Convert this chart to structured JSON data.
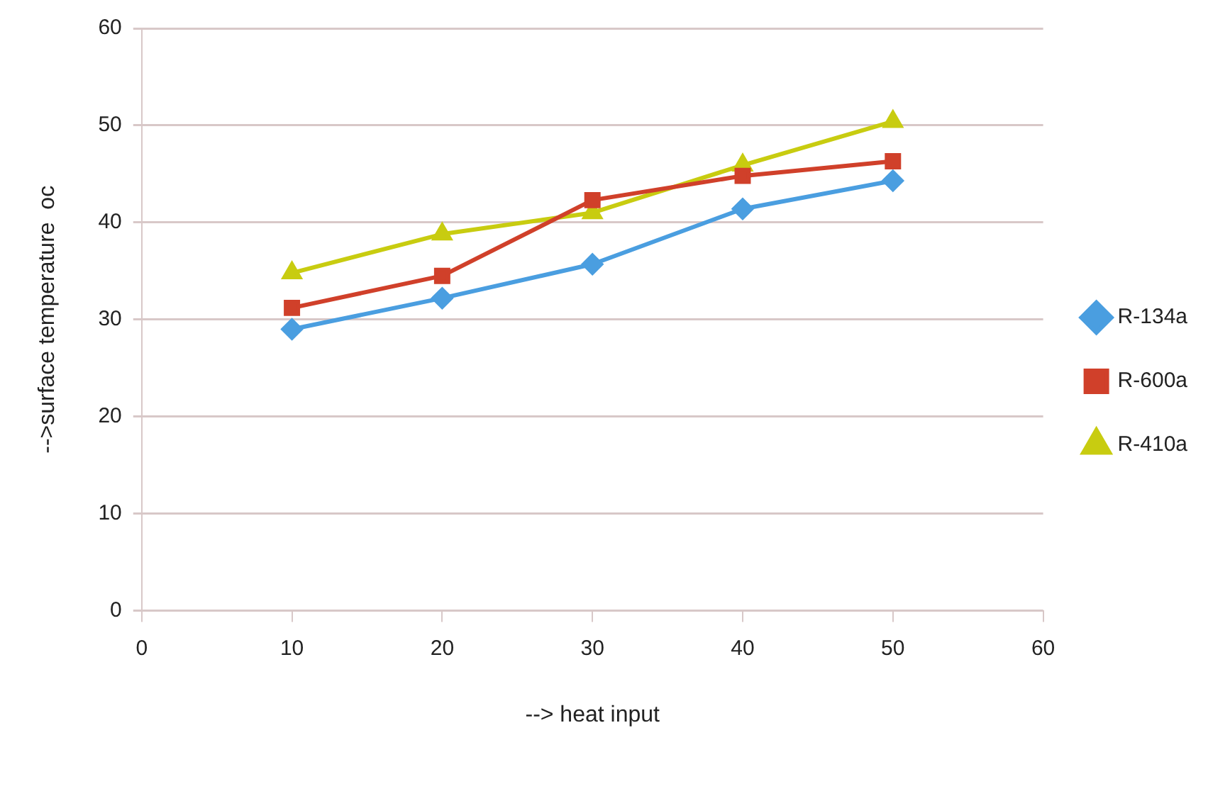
{
  "chart_data": {
    "type": "line",
    "xlabel": "--> heat input",
    "ylabel": "-->surface temperature  oc",
    "x": [
      10,
      20,
      30,
      40,
      50
    ],
    "series": [
      {
        "name": "R-134a",
        "color": "#4a9ee0",
        "marker": "diamond",
        "values": [
          29.0,
          32.2,
          35.7,
          41.4,
          44.3
        ]
      },
      {
        "name": "R-600a",
        "color": "#d0402a",
        "marker": "square",
        "values": [
          31.2,
          34.5,
          42.3,
          44.8,
          46.3
        ]
      },
      {
        "name": "R-410a",
        "color": "#c8cc10",
        "marker": "triangle",
        "values": [
          34.8,
          38.8,
          41.0,
          45.9,
          50.4
        ]
      }
    ],
    "xlim": [
      0,
      60
    ],
    "xticks": [
      0,
      10,
      20,
      30,
      40,
      50,
      60
    ],
    "ylim": [
      0,
      60
    ],
    "yticks": [
      0,
      10,
      20,
      30,
      40,
      50,
      60
    ],
    "grid": "y",
    "legend": "right"
  }
}
